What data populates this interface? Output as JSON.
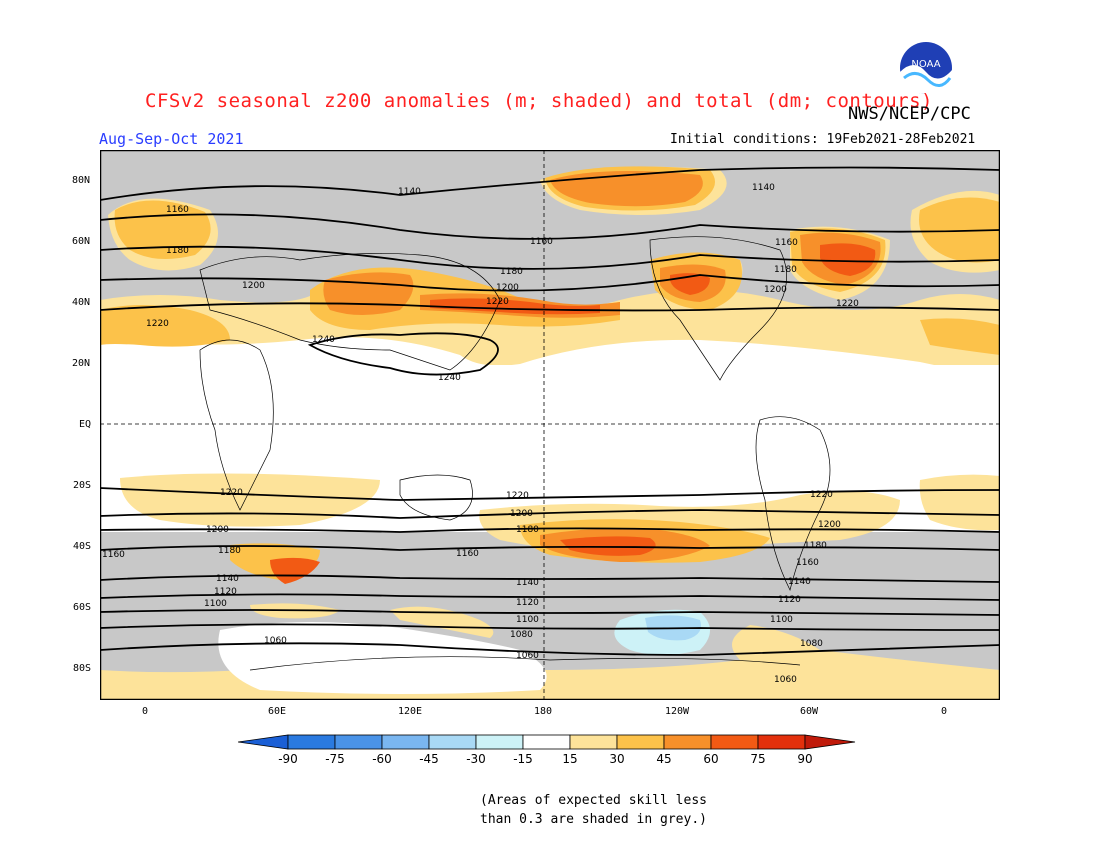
{
  "title": "CFSv2 seasonal z200 anomalies (m; shaded) and total (dm; contours)",
  "agency": "NWS/NCEP/CPC",
  "logo_text": "NOAA",
  "season": "Aug-Sep-Oct 2021",
  "initial_conditions": "Initial conditions: 19Feb2021-28Feb2021",
  "lat_labels": [
    "80N",
    "60N",
    "40N",
    "20N",
    "EQ",
    "20S",
    "40S",
    "60S",
    "80S"
  ],
  "lon_labels": [
    "0",
    "60E",
    "120E",
    "180",
    "120W",
    "60W",
    "0"
  ],
  "colorbar": {
    "labels": [
      "-90",
      "-75",
      "-60",
      "-45",
      "-30",
      "-15",
      "15",
      "30",
      "45",
      "60",
      "75",
      "90"
    ],
    "colors": [
      "#1a5fd6",
      "#2a7ae0",
      "#4a93e8",
      "#7ab6f0",
      "#a9d9f5",
      "#cdf2f7",
      "#ffffff",
      "#fde39a",
      "#fcc24a",
      "#f7902a",
      "#f25a14",
      "#e3300c",
      "#c01a0a"
    ]
  },
  "contour_labels": {
    "c1140": "1140",
    "c1160": "1160",
    "c1180": "1180",
    "c1200": "1200",
    "c1220": "1220",
    "c1240": "1240",
    "c1120": "1120",
    "c1100": "1100",
    "c1080": "1080",
    "c1060": "1060"
  },
  "note": [
    "(Areas of expected skill less",
    "than 0.3 are shaded in grey.)"
  ]
}
